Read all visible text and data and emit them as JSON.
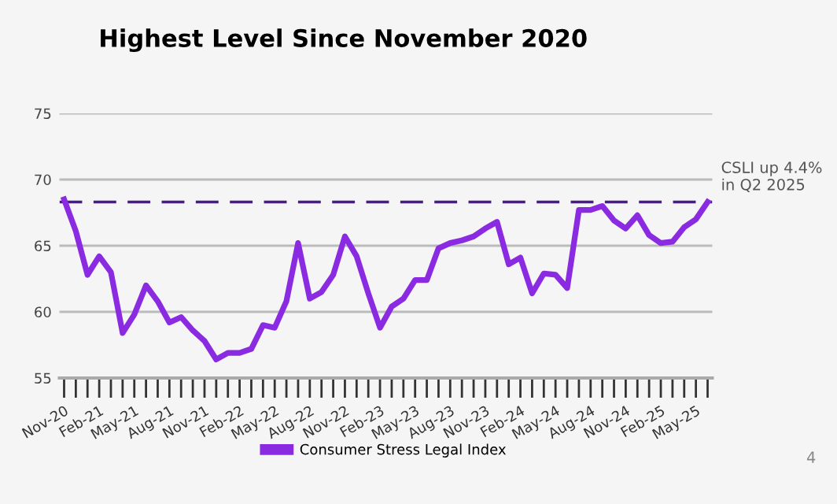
{
  "chart_data": {
    "type": "line",
    "title": "Highest Level Since November 2020",
    "categories": [
      "Nov-20",
      null,
      null,
      "Feb-21",
      null,
      null,
      "May-21",
      null,
      null,
      "Aug-21",
      null,
      null,
      "Nov-21",
      null,
      null,
      "Feb-22",
      null,
      null,
      "May-22",
      null,
      null,
      "Aug-22",
      null,
      null,
      "Nov-22",
      null,
      null,
      "Feb-23",
      null,
      null,
      "May-23",
      null,
      null,
      "Aug-23",
      null,
      null,
      "Nov-23",
      null,
      null,
      "Feb-24",
      null,
      null,
      "May-24",
      null,
      null,
      "Aug-24",
      null,
      null,
      "Nov-24",
      null,
      null,
      "Feb-25",
      null,
      null,
      "May-25",
      null
    ],
    "series": [
      {
        "name": "Consumer Stress Legal Index",
        "color": "#8a2be2",
        "values": [
          68.5,
          66.1,
          62.8,
          64.2,
          63.0,
          58.4,
          59.8,
          62.0,
          60.8,
          59.2,
          59.6,
          58.6,
          57.8,
          56.4,
          56.9,
          56.9,
          57.2,
          59.0,
          58.8,
          60.8,
          65.2,
          61.0,
          61.5,
          62.8,
          65.7,
          64.2,
          61.4,
          58.8,
          60.4,
          61.0,
          62.4,
          62.4,
          64.8,
          65.2,
          65.4,
          65.7,
          66.3,
          66.8,
          63.6,
          64.1,
          61.4,
          62.9,
          62.8,
          61.8,
          67.7,
          67.7,
          68.0,
          66.9,
          66.3,
          67.3,
          65.8,
          65.2,
          65.3,
          66.4,
          67.0,
          68.3
        ]
      }
    ],
    "ylim": [
      55,
      75
    ],
    "yticks": [
      55,
      60,
      65,
      70,
      75
    ],
    "grid": "y",
    "legend": "bottom",
    "marker": "none",
    "line_style": "solid",
    "ref_lines": [
      {
        "axis": "y",
        "value": 68.3,
        "label": "CSLI up 4.4%\nin Q2 2025",
        "color": "#4b1a8c",
        "line_style": "dashed"
      }
    ],
    "annotations": [
      "4"
    ]
  }
}
